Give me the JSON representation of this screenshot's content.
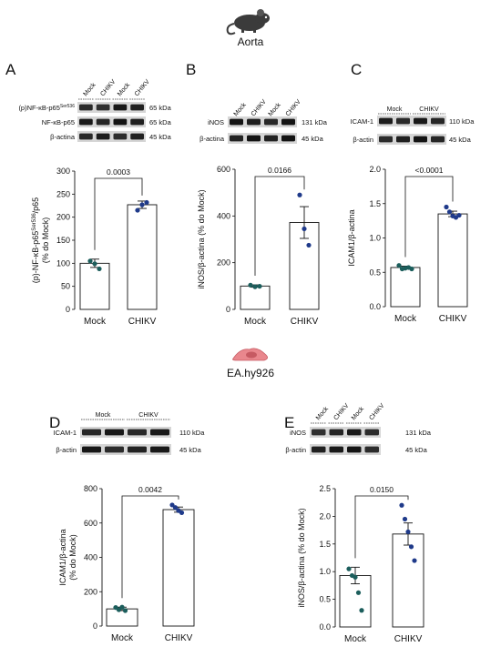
{
  "header": {
    "top_label": "Aorta",
    "middle_label": "EA.hy926"
  },
  "panels": [
    {
      "id": "A",
      "letter": "A",
      "lanes": [
        "Mock",
        "CHIKV",
        "Mock",
        "CHIKV"
      ],
      "lane_style": "rotated",
      "blots": [
        {
          "label": "(p)NF-κB-p65",
          "label_sup": "Ser536",
          "kda": "65 kDa"
        },
        {
          "label": "NF-κB-p65",
          "label_sup": "",
          "kda": "65 kDa"
        },
        {
          "label": "β-actina",
          "label_sup": "",
          "kda": "45 kDa"
        }
      ],
      "chart_data": {
        "type": "bar",
        "categories": [
          "Mock",
          "CHIKV"
        ],
        "values": [
          100,
          227
        ],
        "errors": [
          9,
          8
        ],
        "points": [
          [
            105,
            99,
            88
          ],
          [
            215,
            227,
            232
          ]
        ],
        "ylim": [
          0,
          300
        ],
        "yticks": [
          0,
          50,
          100,
          150,
          200,
          250,
          300
        ],
        "ylabel_pre": "(p)-NF-κB-p65",
        "ylabel_sup": "Ser536",
        "ylabel_post": "/p65",
        "ylabel_line2": "(% do Mock)",
        "pvalue": "0.0003",
        "point_colors": [
          "#1c5e5c",
          "#1f3a8a"
        ]
      }
    },
    {
      "id": "B",
      "letter": "B",
      "lanes": [
        "Mock",
        "CHIKV",
        "Mock",
        "CHIKV"
      ],
      "lane_style": "rotated",
      "blots": [
        {
          "label": "iNOS",
          "label_sup": "",
          "kda": "131 kDa"
        },
        {
          "label": "β-actina",
          "label_sup": "",
          "kda": "45 kDa"
        }
      ],
      "chart_data": {
        "type": "bar",
        "categories": [
          "Mock",
          "CHIKV"
        ],
        "values": [
          100,
          372
        ],
        "errors": [
          5,
          68
        ],
        "points": [
          [
            104,
            97,
            99
          ],
          [
            490,
            345,
            275
          ]
        ],
        "ylim": [
          0,
          600
        ],
        "yticks": [
          0,
          200,
          400,
          600
        ],
        "ylabel_pre": "iNOS/β-actina (% do Mock)",
        "ylabel_sup": "",
        "ylabel_post": "",
        "ylabel_line2": "",
        "pvalue": "0.0166",
        "point_colors": [
          "#1c5e5c",
          "#1f3a8a"
        ]
      }
    },
    {
      "id": "C",
      "letter": "C",
      "lanes": [
        "Mock",
        "CHIKV"
      ],
      "lane_style": "group",
      "lane_groups": 2,
      "blots": [
        {
          "label": "ICAM-1",
          "label_sup": "",
          "kda": "110 kDa"
        },
        {
          "label": "β-actin",
          "label_sup": "",
          "kda": "45 kDa"
        }
      ],
      "chart_data": {
        "type": "bar",
        "categories": [
          "Mock",
          "CHIKV"
        ],
        "values": [
          0.57,
          1.35
        ],
        "errors": [
          0.02,
          0.04
        ],
        "points": [
          [
            0.6,
            0.55,
            0.56,
            0.57,
            0.55
          ],
          [
            1.45,
            1.38,
            1.32,
            1.3,
            1.33
          ]
        ],
        "ylim": [
          0,
          2.0
        ],
        "yticks": [
          0.0,
          0.5,
          1.0,
          1.5,
          2.0
        ],
        "tick_decimals": 1,
        "ylabel_pre": "ICAM1/β-actina",
        "ylabel_sup": "",
        "ylabel_post": "",
        "ylabel_line2": "",
        "pvalue": "<0.0001",
        "point_colors": [
          "#1c5e5c",
          "#1f3a8a"
        ]
      }
    },
    {
      "id": "D",
      "letter": "D",
      "lanes": [
        "Mock",
        "CHIKV"
      ],
      "lane_style": "group",
      "lane_groups": 2,
      "blots": [
        {
          "label": "ICAM-1",
          "label_sup": "",
          "kda": "110 kDa"
        },
        {
          "label": "β-actin",
          "label_sup": "",
          "kda": "45 kDa"
        }
      ],
      "chart_data": {
        "type": "bar",
        "categories": [
          "Mock",
          "CHIKV"
        ],
        "values": [
          100,
          678
        ],
        "errors": [
          10,
          15
        ],
        "points": [
          [
            108,
            95,
            110,
            90
          ],
          [
            705,
            690,
            672,
            660
          ]
        ],
        "ylim": [
          0,
          800
        ],
        "yticks": [
          0,
          200,
          400,
          600,
          800
        ],
        "ylabel_pre": "ICAM1/β-actina",
        "ylabel_sup": "",
        "ylabel_post": "",
        "ylabel_line2": "(% do Mock)",
        "pvalue": "0.0042",
        "point_colors": [
          "#1c5e5c",
          "#1f3a8a"
        ]
      }
    },
    {
      "id": "E",
      "letter": "E",
      "lanes": [
        "Mock",
        "CHIKV",
        "Mock",
        "CHIKV"
      ],
      "lane_style": "rotated",
      "blots": [
        {
          "label": "iNOS",
          "label_sup": "",
          "kda": "131 kDa"
        },
        {
          "label": "β-actin",
          "label_sup": "",
          "kda": "45 kDa"
        }
      ],
      "chart_data": {
        "type": "bar",
        "categories": [
          "Mock",
          "CHIKV"
        ],
        "values": [
          0.93,
          1.68
        ],
        "errors": [
          0.15,
          0.2
        ],
        "points": [
          [
            1.05,
            0.93,
            0.9,
            0.62,
            0.3
          ],
          [
            2.2,
            1.95,
            1.72,
            1.45,
            1.2
          ]
        ],
        "ylim": [
          0,
          2.5
        ],
        "yticks": [
          0.0,
          0.5,
          1.0,
          1.5,
          2.0,
          2.5
        ],
        "tick_decimals": 1,
        "ylabel_pre": "iNOS/β-actina (% do Mock)",
        "ylabel_sup": "",
        "ylabel_post": "",
        "ylabel_line2": "",
        "pvalue": "0.0150",
        "point_colors": [
          "#1c5e5c",
          "#1f3a8a"
        ]
      }
    }
  ]
}
